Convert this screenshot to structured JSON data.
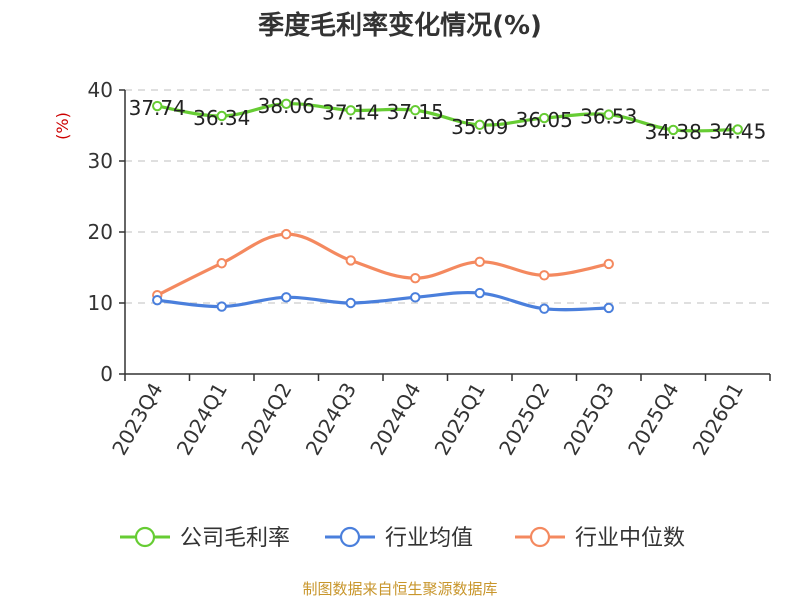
{
  "chart_data": {
    "type": "line",
    "title": "季度毛利率变化情况(%)",
    "ylabel": "(%)",
    "xlabel": "",
    "ylim": [
      0,
      40
    ],
    "yticks": [
      0,
      10,
      20,
      30,
      40
    ],
    "grid": true,
    "legend_position": "bottom",
    "categories": [
      "2023Q4",
      "2024Q1",
      "2024Q2",
      "2024Q3",
      "2024Q4",
      "2025Q1",
      "2025Q2",
      "2025Q3",
      "2025Q4",
      "2026Q1"
    ],
    "series": [
      {
        "name": "公司毛利率",
        "color": "#66cc33",
        "values": [
          37.74,
          36.34,
          38.06,
          37.14,
          37.15,
          35.09,
          36.05,
          36.53,
          34.38,
          34.45
        ],
        "labels": [
          "37.74",
          "36.34",
          "38.06",
          "37.14",
          "37.15",
          "35.09",
          "36.05",
          "36.53",
          "34.38",
          "34.45"
        ]
      },
      {
        "name": "行业均值",
        "color": "#4a7fdc",
        "values": [
          10.4,
          9.5,
          10.8,
          10.0,
          10.8,
          11.4,
          9.2,
          9.3,
          null,
          null
        ]
      },
      {
        "name": "行业中位数",
        "color": "#f4895f",
        "values": [
          11.1,
          15.6,
          19.7,
          16.0,
          13.5,
          15.8,
          13.9,
          15.5,
          null,
          null
        ]
      }
    ],
    "source": "制图数据来自恒生聚源数据库"
  }
}
